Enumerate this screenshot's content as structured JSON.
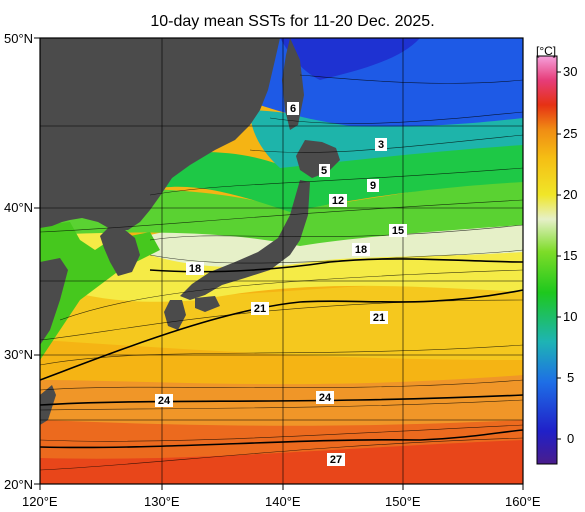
{
  "title": "10-day mean SSTs for 11-20 Dec. 2025.",
  "lat_labels": [
    "50°N",
    "40°N",
    "30°N",
    "20°N"
  ],
  "lon_labels": [
    "120°E",
    "130°E",
    "140°E",
    "150°E",
    "160°E"
  ],
  "colorbar": {
    "unit": "[°C]",
    "ticks": [
      "30",
      "25",
      "20",
      "15",
      "10",
      "5",
      "0"
    ]
  },
  "contour_labels": [
    "6",
    "3",
    "5",
    "9",
    "12",
    "15",
    "18",
    "18",
    "21",
    "21",
    "24",
    "24",
    "27"
  ],
  "colors": {
    "land": "#4b4b4b",
    "ocean_warm": "#f07818",
    "ocean_cold": "#1428d2"
  }
}
